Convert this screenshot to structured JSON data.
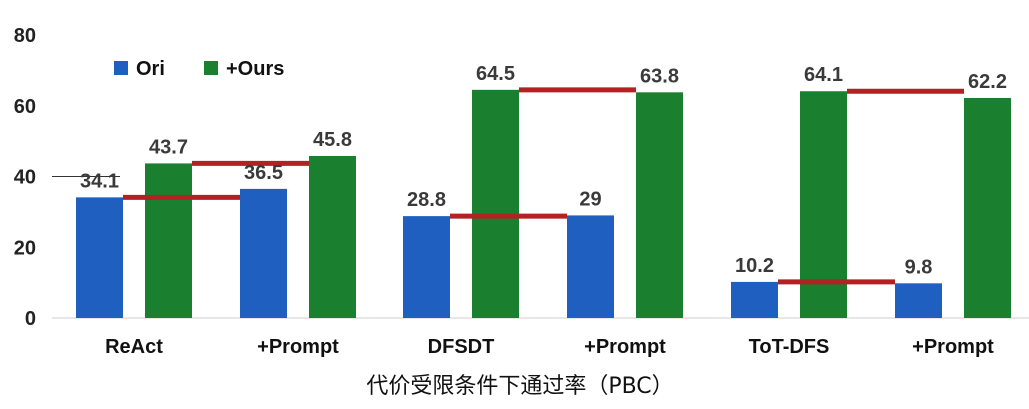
{
  "chart_data": {
    "type": "bar",
    "xlabel": "代价受限条件下通过率（PBC）",
    "ylim": [
      0,
      80
    ],
    "yticks": [
      0,
      20,
      40,
      60,
      80
    ],
    "categories": [
      "ReAct",
      "+Prompt",
      "DFSDT",
      "+Prompt",
      "ToT-DFS",
      "+Prompt"
    ],
    "series": [
      {
        "name": "Ori",
        "color": "#1f5fbf",
        "values": [
          34.1,
          36.5,
          28.8,
          29,
          10.2,
          9.8
        ],
        "labels": [
          "34.1",
          "36.5",
          "28.8",
          "29",
          "10.2",
          "9.8"
        ]
      },
      {
        "name": "+Ours",
        "color": "#1a7f2e",
        "values": [
          43.7,
          45.8,
          64.5,
          63.8,
          64.1,
          62.2
        ],
        "labels": [
          "43.7",
          "45.8",
          "64.5",
          "63.8",
          "64.1",
          "62.2"
        ]
      }
    ],
    "legend": "top-left",
    "connector_color": "#b22222",
    "connectors": [
      {
        "from_category": 0,
        "series": "Ori"
      },
      {
        "from_category": 0,
        "series": "+Ours"
      },
      {
        "from_category": 2,
        "series": "Ori"
      },
      {
        "from_category": 2,
        "series": "+Ours"
      },
      {
        "from_category": 4,
        "series": "Ori"
      },
      {
        "from_category": 4,
        "series": "+Ours"
      }
    ]
  }
}
